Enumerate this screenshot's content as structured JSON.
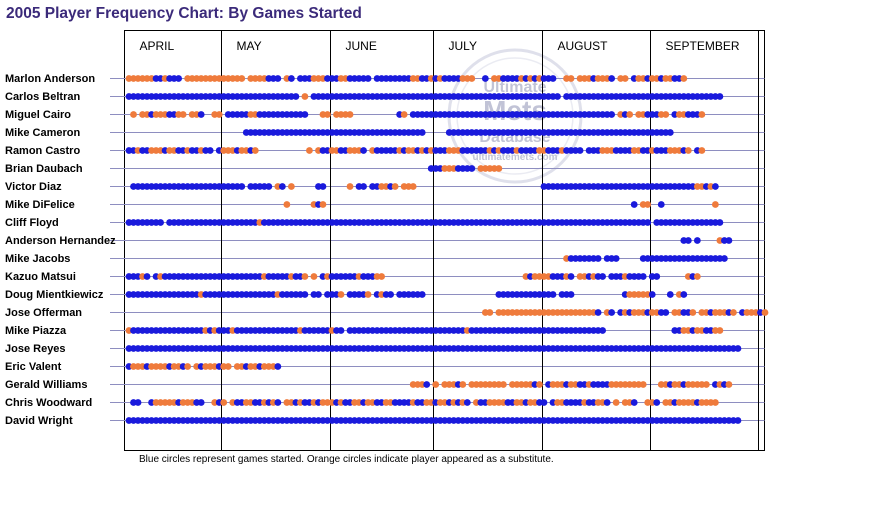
{
  "title": "2005 Player Frequency Chart: By Games Started",
  "watermark": [
    "Ultimate",
    "Mets",
    "Database",
    "ultimatemets.com"
  ],
  "colors": {
    "started": "#1a1adc",
    "substitute": "#ef7b3c",
    "title": "#3b2a7a",
    "rule": "#8e8ec0"
  },
  "chart_data": {
    "type": "scatter",
    "title": "2005 Player Frequency Chart: By Games Started",
    "months": [
      {
        "name": "APRIL",
        "games": 21
      },
      {
        "name": "MAY",
        "games": 24
      },
      {
        "name": "JUNE",
        "games": 23
      },
      {
        "name": "JULY",
        "games": 24
      },
      {
        "name": "AUGUST",
        "games": 24
      },
      {
        "name": "SEPTEMBER",
        "games": 26
      }
    ],
    "total_games": 142,
    "legend": {
      "started": "B",
      "substitute": "O",
      "no_appearance": "-"
    },
    "players": [
      {
        "name": "Marlon Anderson",
        "games": "OOOOOOBBOBBB-OOOOOOOOOOOOO-OOOOBBB-OB-BBBOOOBBBOOBBBBB-BBBBBBBBOOBBOBOBBBBOOO--B-OOBBBBOBOBOBBB--OO-OOOBOOOB-OO-BOOBOOBOOBBO"
      },
      {
        "name": "Carlos Beltran",
        "games": "BBBBBBBBBBBBBBBBBBBBBBBBBBBBBBBBBBBBBB-O-BBBBBBBBBBBBBBBBBBBBBBBBBBBBBBBBBBBBBBBBBBBBBBBBBBBBBBB-BBBBBBBBBBBBBBBBBBBBBBBBBBBBBBBBBBB"
      },
      {
        "name": "Miguel Cairo",
        "games": "-O-OOBOOOBBOO-OOB--OO-BBBBBOOBBBBBBBBBBB---OO-OOOO----------BO-BBBBBBBBBBBBBBBBBBBBBBBBBBBBBBBBBBBBBBBBBBBBB-OBO-OOBBBOO-BOOBBBO--"
      },
      {
        "name": "Mike Cameron",
        "games": "--------------------------BBBBBBBBBBBBBBBBBBBBBBBBBBBBBBBBBBBBBBBB-----BBBBBBBBBBBBBBBBBBBBBBBBBBBBBBBBBBBBBBBBBBBBBBBBBB-------------------"
      },
      {
        "name": "Ramon Castro",
        "games": "BBOBBOOOBOOBBOBBOBB-BOOOBOOBO-----------O-OBBOOBBOOOB-OBBBBBOBOOBOBOBBBOOOBBBBBBOBOBBBOBBBBOOBBBOBBBB-BBBOOOBBBBOOBBOBBBOOOBO-BO"
      },
      {
        "name": "Brian Daubach",
        "games": "-------------------------------------------------------------------BBBOOOBBBB-OOOOO--------------------------------------------------"
      },
      {
        "name": "Victor Diaz",
        "games": "-BBBBBBBBBBBBBBBBBBBBBBBBB-BBBBB-OB-O-----BB-----O-BB-BBOOBO-OOO----------------------------BBBBBBBBBBBBBBBBBBBBBBBBBBBBBBBBBBOOBOB"
      },
      {
        "name": "Mike DiFelice",
        "games": "-----------------------------------O-----OBO--------------------------------------------------------------------B-OO--B-----------O"
      },
      {
        "name": "Cliff Floyd",
        "games": "BBBBBBBB-BBBBBBBBBBBBBBBBBBBBOBBBBBBBBBBBBBBBBBBBBBBBBBBBBBBBBBBBBBBBBBBBBBBBBBBBBBBBBBBBBBBBBBBBBBBBBBBBBBBBBBBBBBB-BBBBBBBBBBBBBBB"
      },
      {
        "name": "Anderson Hernandez",
        "games": "---------------------------------------------------------------------------------------------------------------------------BB-B----OBB"
      },
      {
        "name": "Mike Jacobs",
        "games": "-------------------------------------------------------------------------------------------------OBBBBBBB-BBB-----BBBBBBBBBBBBBBBBBBB"
      },
      {
        "name": "Kazuo Matsui",
        "games": "BBBOB-BOBBBBBBBBBBBBBBBBBBBBBBOBBBBBOBBO-O-BOBBBBBBOBBBOO-------------------------------OBOOOOBBBOB-OOBOBB-BBBOBBBB-BB------OBO-------"
      },
      {
        "name": "Doug Mientkiewicz",
        "games": "BBBBBBBBBBBBBBBBOBBBBBBBBBBBBBBBBOBBBBBB-BB-BBBO-BBBBO-BOBB-BBBBBB----------------BBBBBBBBBBBBB-BBB-----------BOOOOOB---B-OB-----"
      },
      {
        "name": "Jose Offerman",
        "games": "-------------------------------------------------------------------------------OO-OOOOOOOOOOOOOOOOOOOOOOB-OB-BOBOOOBOOBB-OOBBO-OOBOOOBO-BOOOBO-BOB--O"
      },
      {
        "name": "Mike Piazza",
        "games": "OBBBBBBBBBBBBBBBBOBOBBBOBBBBBBBBBBBBBBOBBBBBBOBB-BBBBBBBBBBBBBBBBBBBBBBBBBBOBBBBBBBBBBBBBBBBBBBBBBBBBBBBBB---------------BBOOBOOBBOO"
      },
      {
        "name": "Jose Reyes",
        "games": "BBBBBBBBBBBBBBBBBBBBBBBBBBBBBBBBBBBBBBBBBBBBBBBBBBBBBBBBBBBBBBBBBBBBBBBBBBBBBBBBBBBBBBBBBBBBBBBBBBBBBBBBBBBBBBBBBBBBBBBBBBBBBBBBBBBBBBBB"
      },
      {
        "name": "Eric Valent",
        "games": "BOOOBOOOOBOOBO-OBOOOBOO-OOBOOBOOOB-------------------------------------------------------------------------------------------------"
      },
      {
        "name": "Gerald Williams",
        "games": "---------------------------------------------------------------OOOB-O-OOOBO-OOOOOOOO-OOOOOBO-BOOOBOOBBOBBBBOOOOOOOO---OOBOOBOOOOO-BOBO"
      },
      {
        "name": "Chris Woodward",
        "games": "-BB--BOOOOOBOOOBB--OBO-OBBOOBBOBOB-OOBOBBOBOOOBOBBOOBOOBBOOBBBBOBBOOBOOBOBOB-OBBOOOOBBOOBOOBB-BOOBBBBOBBOOB-O-OOB--OOB-OOBOOOOBOOOO"
      },
      {
        "name": "David Wright",
        "games": "BBBBBBBBBBBBBBBBBBBBBBBBBBBBBBBBBBBBBBBBBBBBBBBBBBBBBBBBBBBBBBBBBBBBBBBBBBBBBBBBBBBBBBBBBBBBBBBBBBBBBBBBBBBBBBBBBBBBBBBBBBBBBBBBBBBBBBBB"
      }
    ],
    "note": "Blue circles represent games started. Orange circles indicate player appeared as a substitute."
  }
}
